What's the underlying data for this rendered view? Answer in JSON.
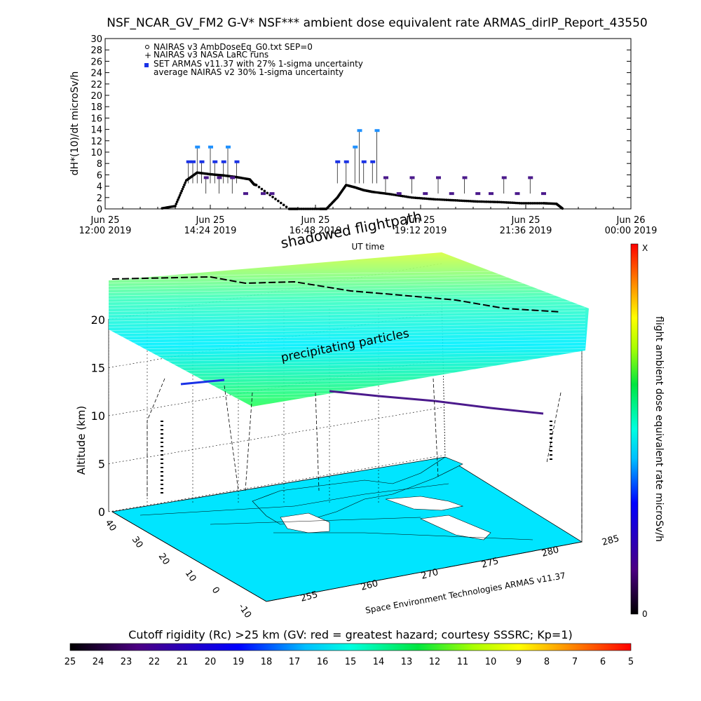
{
  "chart_data": [
    {
      "type": "scatter",
      "title": "NSF_NCAR_GV_FM2 G-V* NSF*** ambient dose equivalent rate ARMAS_dirIP_Report_43550",
      "ylabel": "dH*(10)/dt microSv/h",
      "xlabel": "UT time",
      "ylim": [
        0,
        30
      ],
      "yticks": [
        0,
        2,
        4,
        6,
        8,
        10,
        12,
        14,
        16,
        18,
        20,
        22,
        24,
        26,
        28,
        30
      ],
      "x_tick_labels": [
        {
          "day": "Jun 25",
          "time": "12:00 2019"
        },
        {
          "day": "Jun 25",
          "time": "14:24 2019"
        },
        {
          "day": "Jun 25",
          "time": "16:48 2019"
        },
        {
          "day": "Jun 25",
          "time": "19:12 2019"
        },
        {
          "day": "Jun 25",
          "time": "21:36 2019"
        },
        {
          "day": "Jun 26",
          "time": "00:00 2019"
        }
      ],
      "xlim_hours": [
        12,
        24
      ],
      "legend": [
        "NAIRAS v3 AmbDoseEq_G0.txt SEP=0",
        "NAIRAS v3 NASA LaRC runs",
        "SET ARMAS v11.37 with 27% 1-sigma uncertainty",
        "average NAIRAS v2 30% 1-sigma uncertainty"
      ],
      "legend_position": "top-left",
      "series": [
        {
          "name": "NAIRAS v3 AmbDoseEq_G0.txt SEP=0",
          "x": [
            13.3,
            13.6,
            13.85,
            14.1,
            14.4,
            14.7,
            15.0,
            15.3,
            15.4,
            15.45,
            16.2,
            16.4,
            16.9,
            17.05,
            17.3,
            17.5,
            17.7,
            17.9,
            18.1,
            18.5,
            19.0,
            19.5,
            20.0,
            20.5,
            21.0,
            21.5,
            22.0,
            22.3,
            22.45
          ],
          "y": [
            0.1,
            0.5,
            5.0,
            6.4,
            6.1,
            5.9,
            5.6,
            5.2,
            4.3,
            4.2,
            0.0,
            0.0,
            0.0,
            0.0,
            2.0,
            4.2,
            3.8,
            3.3,
            3.0,
            2.6,
            2.0,
            1.7,
            1.5,
            1.3,
            1.2,
            1.0,
            1.0,
            0.9,
            0.0
          ]
        },
        {
          "name": "SET ARMAS v11.37 with 27% 1-sigma uncertainty",
          "x": [
            13.9,
            14.0,
            14.1,
            14.2,
            14.4,
            14.5,
            14.7,
            14.8,
            15.0,
            17.3,
            17.5,
            17.7,
            17.8,
            17.9,
            18.1,
            18.2
          ],
          "y": [
            8.3,
            8.3,
            10.9,
            8.3,
            10.9,
            8.3,
            8.3,
            10.9,
            8.3,
            8.3,
            8.3,
            10.9,
            13.8,
            8.3,
            8.3,
            13.8
          ]
        },
        {
          "name": "average NAIRAS v2 30% 1-sigma uncertainty",
          "x": [
            14.3,
            14.6,
            14.9,
            15.2,
            15.6,
            15.8,
            18.4,
            18.7,
            19.0,
            19.3,
            19.6,
            19.9,
            20.2,
            20.5,
            20.8,
            21.1,
            21.4,
            21.7,
            22.0
          ],
          "y": [
            5.5,
            5.5,
            5.5,
            2.7,
            2.7,
            2.7,
            5.5,
            2.7,
            5.5,
            2.7,
            5.5,
            2.7,
            5.5,
            2.7,
            2.7,
            5.5,
            2.7,
            5.5,
            2.7
          ]
        }
      ]
    },
    {
      "type": "scatter",
      "zlabel": "Altitude (km)",
      "zticks": [
        0,
        5,
        10,
        15,
        20
      ],
      "lat_ticks": [
        40,
        30,
        20,
        10,
        0,
        -10
      ],
      "lon_ticks": [
        255,
        260,
        270,
        275,
        280,
        285
      ],
      "annotations": {
        "top": "shadowed flightpath",
        "mid": "precipitating particles",
        "credit": "Space Environment Technologies ARMAS v11.37"
      },
      "colorbar_right": {
        "label": "flight ambient dose equivalent rate microSv/h",
        "top": "X",
        "bottom": "0"
      },
      "colorbar_bottom": {
        "label": "Cutoff rigidity (Rc) >25 km (GV: red = greatest hazard; courtesy SSSRC; Kp=1)",
        "ticks": [
          "25",
          "24",
          "23",
          "22",
          "21",
          "20",
          "19",
          "18",
          "17",
          "16",
          "15",
          "14",
          "13",
          "12",
          "11",
          "10",
          "9",
          "8",
          "7",
          "6",
          "5"
        ]
      }
    }
  ],
  "colors": {
    "armas": "#1a32e6",
    "armas_high": "#1e90ff",
    "nairas_v2": "#4b1a8c",
    "nairas_v3": "#000000",
    "ocean": "#00e5ff",
    "land": "#ffffff"
  }
}
